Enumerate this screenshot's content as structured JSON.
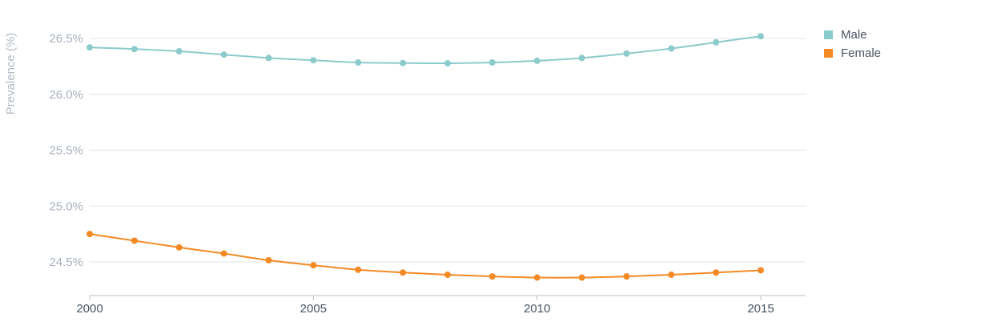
{
  "chart_data": {
    "type": "line",
    "title": "",
    "xlabel": "",
    "ylabel": "Prevalence (%)",
    "x": [
      2000,
      2001,
      2002,
      2003,
      2004,
      2005,
      2006,
      2007,
      2008,
      2009,
      2010,
      2011,
      2012,
      2013,
      2014,
      2015
    ],
    "x_ticks": [
      "2000",
      "2005",
      "2010",
      "2015"
    ],
    "y_ticks": [
      "24.5%",
      "25.0%",
      "25.5%",
      "26.0%",
      "26.5%"
    ],
    "y_tick_values": [
      24.5,
      25.0,
      25.5,
      26.0,
      26.5
    ],
    "xlim": [
      2000,
      2016
    ],
    "ylim": [
      24.2,
      26.72
    ],
    "grid": true,
    "legend_position": "top-right",
    "series": [
      {
        "name": "Male",
        "color": "#8ccbcb",
        "values": [
          26.42,
          26.405,
          26.385,
          26.355,
          26.325,
          26.305,
          26.285,
          26.28,
          26.278,
          26.285,
          26.3,
          26.325,
          26.365,
          26.41,
          26.465,
          26.52
        ]
      },
      {
        "name": "Female",
        "color": "#f48a24",
        "values": [
          24.75,
          24.69,
          24.63,
          24.575,
          24.515,
          24.47,
          24.43,
          24.405,
          24.385,
          24.37,
          24.36,
          24.36,
          24.37,
          24.385,
          24.405,
          24.425
        ]
      }
    ],
    "colors": {
      "grid": "#dfe4ea",
      "axis": "#b9c0c9"
    }
  }
}
